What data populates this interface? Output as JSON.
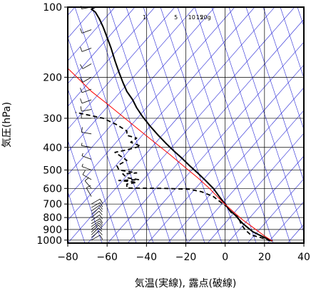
{
  "chart_data": {
    "type": "line",
    "title": "",
    "xlabel": "気温(実線), 露点(破線)",
    "ylabel": "気圧(hPa)",
    "xlim": [
      -80,
      40
    ],
    "ylim": [
      1030,
      100
    ],
    "yscale": "log",
    "grid": true,
    "x_ticks": [
      -80,
      -60,
      -40,
      -20,
      0,
      20,
      40
    ],
    "x_tick_labels": [
      "−80",
      "−60",
      "−40",
      "−20",
      "0",
      "20",
      "40"
    ],
    "y_ticks": [
      100,
      200,
      300,
      400,
      500,
      600,
      700,
      800,
      900,
      1000
    ],
    "y_tick_labels": [
      "100",
      "200",
      "300",
      "400",
      "500",
      "600",
      "700",
      "800",
      "900",
      "1000"
    ],
    "mixing_ratio_labels": [
      "1",
      "5",
      "10",
      "15",
      "20g"
    ],
    "colors": {
      "temperature": "#000000",
      "dewpoint": "#000000",
      "parcel": "#ff0000",
      "guide_lines": "#2a2ad6",
      "grid": "#000000",
      "wind_barbs": "#000000"
    },
    "series": [
      {
        "style": "solid",
        "points": [
          [
            24,
            1010
          ],
          [
            20,
            975
          ],
          [
            14,
            920
          ],
          [
            9,
            850
          ],
          [
            7,
            815
          ],
          [
            5,
            780
          ],
          [
            2,
            740
          ],
          [
            0,
            700
          ],
          [
            -3,
            650
          ],
          [
            -6,
            600
          ],
          [
            -10,
            555
          ],
          [
            -14,
            515
          ],
          [
            -18,
            480
          ],
          [
            -22,
            445
          ],
          [
            -26,
            415
          ],
          [
            -30,
            385
          ],
          [
            -34,
            355
          ],
          [
            -38,
            325
          ],
          [
            -42,
            295
          ],
          [
            -45,
            270
          ],
          [
            -47,
            250
          ],
          [
            -50,
            230
          ],
          [
            -52,
            210
          ],
          [
            -54,
            190
          ],
          [
            -56,
            170
          ],
          [
            -58,
            150
          ],
          [
            -60,
            135
          ],
          [
            -62,
            122
          ],
          [
            -64,
            112
          ],
          [
            -66,
            105
          ],
          [
            -68,
            102
          ],
          [
            -66,
            100
          ]
        ]
      },
      {
        "style": "dashed",
        "points": [
          [
            23,
            1008
          ],
          [
            18,
            975
          ],
          [
            13,
            950
          ],
          [
            10,
            900
          ],
          [
            8,
            850
          ],
          [
            7,
            810
          ],
          [
            6,
            790
          ],
          [
            3,
            760
          ],
          [
            1,
            720
          ],
          [
            -2,
            690
          ],
          [
            -6,
            650
          ],
          [
            -12,
            620
          ],
          [
            -18,
            605
          ],
          [
            -30,
            600
          ],
          [
            -50,
            598
          ],
          [
            -50,
            575
          ],
          [
            -45,
            565
          ],
          [
            -54,
            555
          ],
          [
            -44,
            550
          ],
          [
            -50,
            540
          ],
          [
            -52,
            520
          ],
          [
            -45,
            515
          ],
          [
            -54,
            500
          ],
          [
            -55,
            480
          ],
          [
            -50,
            455
          ],
          [
            -56,
            420
          ],
          [
            -50,
            410
          ],
          [
            -43,
            395
          ],
          [
            -48,
            380
          ],
          [
            -45,
            365
          ],
          [
            -50,
            355
          ],
          [
            -50,
            340
          ],
          [
            -55,
            320
          ],
          [
            -62,
            300
          ],
          [
            -70,
            290
          ],
          [
            -76,
            283
          ]
        ]
      },
      {
        "style": "solid",
        "points": [
          [
            24,
            1010
          ],
          [
            20,
            960
          ],
          [
            14,
            880
          ],
          [
            9,
            820
          ],
          [
            6,
            780
          ],
          [
            3,
            740
          ],
          [
            -1,
            690
          ],
          [
            -4,
            650
          ],
          [
            -8,
            600
          ],
          [
            -14,
            540
          ],
          [
            -20,
            490
          ],
          [
            -28,
            430
          ],
          [
            -36,
            380
          ],
          [
            -44,
            335
          ],
          [
            -52,
            295
          ],
          [
            -60,
            260
          ],
          [
            -68,
            230
          ],
          [
            -74,
            205
          ],
          [
            -80,
            183
          ]
        ]
      }
    ],
    "wind_barbs": [
      {
        "pressure": 1000,
        "direction_deg": 60,
        "speed_kt": 10
      },
      {
        "pressure": 975,
        "direction_deg": 50,
        "speed_kt": 10
      },
      {
        "pressure": 950,
        "direction_deg": 45,
        "speed_kt": 10
      },
      {
        "pressure": 925,
        "direction_deg": 45,
        "speed_kt": 10
      },
      {
        "pressure": 900,
        "direction_deg": 50,
        "speed_kt": 10
      },
      {
        "pressure": 875,
        "direction_deg": 55,
        "speed_kt": 10
      },
      {
        "pressure": 850,
        "direction_deg": 60,
        "speed_kt": 10
      },
      {
        "pressure": 825,
        "direction_deg": 55,
        "speed_kt": 10
      },
      {
        "pressure": 800,
        "direction_deg": 50,
        "speed_kt": 10
      },
      {
        "pressure": 775,
        "direction_deg": 50,
        "speed_kt": 10
      },
      {
        "pressure": 750,
        "direction_deg": 55,
        "speed_kt": 10
      },
      {
        "pressure": 725,
        "direction_deg": 60,
        "speed_kt": 10
      },
      {
        "pressure": 700,
        "direction_deg": 60,
        "speed_kt": 10
      },
      {
        "pressure": 650,
        "direction_deg": 330,
        "speed_kt": 10
      },
      {
        "pressure": 600,
        "direction_deg": 320,
        "speed_kt": 10
      },
      {
        "pressure": 550,
        "direction_deg": 300,
        "speed_kt": 10
      },
      {
        "pressure": 500,
        "direction_deg": 290,
        "speed_kt": 5
      },
      {
        "pressure": 450,
        "direction_deg": 290,
        "speed_kt": 5
      },
      {
        "pressure": 400,
        "direction_deg": 280,
        "speed_kt": 5
      },
      {
        "pressure": 350,
        "direction_deg": 280,
        "speed_kt": 10
      },
      {
        "pressure": 300,
        "direction_deg": 270,
        "speed_kt": 10
      },
      {
        "pressure": 275,
        "direction_deg": 260,
        "speed_kt": 10
      },
      {
        "pressure": 250,
        "direction_deg": 250,
        "speed_kt": 10
      },
      {
        "pressure": 225,
        "direction_deg": 250,
        "speed_kt": 10
      },
      {
        "pressure": 200,
        "direction_deg": 240,
        "speed_kt": 10
      },
      {
        "pressure": 175,
        "direction_deg": 240,
        "speed_kt": 10
      },
      {
        "pressure": 150,
        "direction_deg": 250,
        "speed_kt": 10
      },
      {
        "pressure": 125,
        "direction_deg": 250,
        "speed_kt": 10
      },
      {
        "pressure": 100,
        "direction_deg": 260,
        "speed_kt": 5
      }
    ]
  }
}
